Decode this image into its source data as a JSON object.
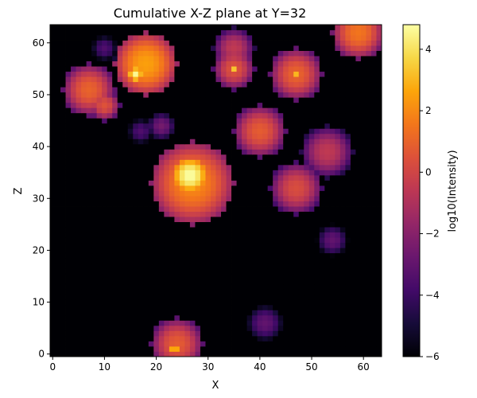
{
  "chart_data": {
    "type": "heatmap",
    "title": "Cumulative X-Z plane at Y=32",
    "xlabel": "X",
    "ylabel": "Z",
    "xlim": [
      -0.5,
      63.5
    ],
    "ylim": [
      -0.5,
      63.5
    ],
    "x_ticks": [
      0,
      10,
      20,
      30,
      40,
      50,
      60
    ],
    "y_ticks": [
      0,
      10,
      20,
      30,
      40,
      50,
      60
    ],
    "grid_resolution": [
      64,
      64
    ],
    "colormap": "inferno",
    "background_value": -6,
    "colorbar": {
      "label": "log10(Intensity)",
      "vmin": -6,
      "vmax": 4.8,
      "ticks": [
        -6,
        -4,
        -2,
        0,
        2,
        4
      ]
    },
    "blobs": [
      {
        "x": 27,
        "z": 33,
        "radius": 8,
        "peak": 2.0
      },
      {
        "x": 26.5,
        "z": 34.5,
        "radius": 3.5,
        "peak": 4.8
      },
      {
        "x": 18,
        "z": 56,
        "radius": 6,
        "peak": 2.5
      },
      {
        "x": 16,
        "z": 54,
        "radius": 1.5,
        "peak": 4.6
      },
      {
        "x": 7,
        "z": 51,
        "radius": 5,
        "peak": 1.0
      },
      {
        "x": 10,
        "z": 48,
        "radius": 3,
        "peak": 0.5
      },
      {
        "x": 10,
        "z": 59,
        "radius": 3,
        "peak": -3.5
      },
      {
        "x": 14,
        "z": 57,
        "radius": 2.5,
        "peak": -2.5
      },
      {
        "x": 35,
        "z": 59,
        "radius": 4,
        "peak": -0.5
      },
      {
        "x": 35,
        "z": 55,
        "radius": 4,
        "peak": 0.5
      },
      {
        "x": 35,
        "z": 55,
        "radius": 1,
        "peak": 3.3
      },
      {
        "x": 47,
        "z": 54,
        "radius": 5,
        "peak": 1.0
      },
      {
        "x": 47,
        "z": 54,
        "radius": 1,
        "peak": 3.0
      },
      {
        "x": 59,
        "z": 62,
        "radius": 5,
        "peak": 1.5
      },
      {
        "x": 40,
        "z": 43,
        "radius": 5,
        "peak": 0.8
      },
      {
        "x": 53,
        "z": 39,
        "radius": 5,
        "peak": -0.5
      },
      {
        "x": 47,
        "z": 32,
        "radius": 5,
        "peak": 0.3
      },
      {
        "x": 21,
        "z": 44,
        "radius": 3,
        "peak": -2.5
      },
      {
        "x": 17,
        "z": 43,
        "radius": 3,
        "peak": -3.5
      },
      {
        "x": 54,
        "z": 22,
        "radius": 3.5,
        "peak": -3.0
      },
      {
        "x": 41,
        "z": 6,
        "radius": 4,
        "peak": -3.0
      },
      {
        "x": 24,
        "z": 2,
        "radius": 5,
        "peak": 0.8
      },
      {
        "x": 23.5,
        "z": 1,
        "radius": 1,
        "peak": 3.5
      }
    ]
  }
}
